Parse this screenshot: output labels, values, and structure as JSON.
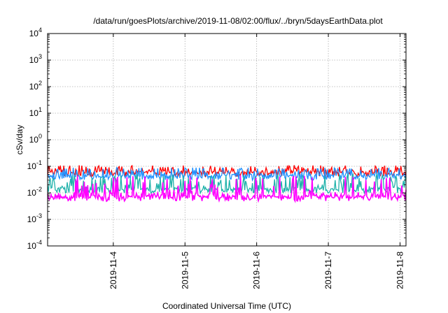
{
  "chart_data": {
    "type": "line",
    "title": "/data/run/goesPlots/archive/2019-11-08/02:00/flux/../bryn/5daysEarthData.plot",
    "xlabel": "Coordinated Universal Time (UTC)",
    "ylabel": "cSv/day",
    "yscale": "log",
    "ylim": [
      0.0001,
      10000
    ],
    "xlim": [
      "2019-11-03T02:00",
      "2019-11-08T02:00"
    ],
    "x_ticks": [
      "2019-11-4",
      "2019-11-5",
      "2019-11-6",
      "2019-11-7",
      "2019-11-8"
    ],
    "y_ticks": [
      {
        "base": "10",
        "exp": "-4"
      },
      {
        "base": "10",
        "exp": "-3"
      },
      {
        "base": "10",
        "exp": "-2"
      },
      {
        "base": "10",
        "exp": "-1"
      },
      {
        "base": "10",
        "exp": "0"
      },
      {
        "base": "10",
        "exp": "1"
      },
      {
        "base": "10",
        "exp": "2"
      },
      {
        "base": "10",
        "exp": "3"
      },
      {
        "base": "10",
        "exp": "4"
      }
    ],
    "grid": true,
    "series": [
      {
        "color": "#ff0000",
        "baseline": 0.055,
        "spike_max": 0.11
      },
      {
        "color": "#1e90ff",
        "baseline": 0.04,
        "spike_max": 0.09
      },
      {
        "color": "#20b2aa",
        "baseline": 0.013,
        "spike_max": 0.05
      },
      {
        "color": "#ff00ff",
        "baseline": 0.008,
        "spike_max": 0.045
      }
    ]
  }
}
